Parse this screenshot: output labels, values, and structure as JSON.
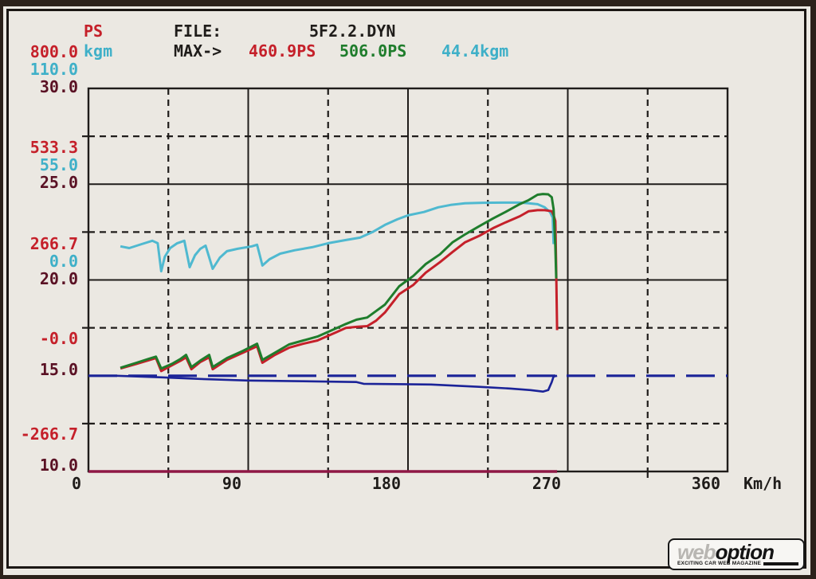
{
  "header": {
    "ps_label": "PS",
    "kgm_label": "kgm",
    "file_label": "FILE:",
    "file_value": "5F2.2.DYN",
    "max_label": "MAX->",
    "max_ps_red": "460.9PS",
    "max_ps_green": "506.0PS",
    "max_kgm": "44.4kgm"
  },
  "colors": {
    "paper": "#ebe8e2",
    "grid": "#1f1c1a",
    "ps_red": "#c5202a",
    "ps_green": "#1f7d2c",
    "kgm_cyan": "#4fb9d0",
    "aux_maroon": "#5a1124",
    "navy": "#1b2398",
    "baseline_maroon": "#8e1745"
  },
  "x_axis": {
    "labels": [
      "0",
      "90",
      "180",
      "270",
      "360"
    ],
    "unit": "Km/h"
  },
  "watermark": {
    "word1": "web",
    "word2": "option",
    "caption": "EXCITING CAR WEB MAGAZINE"
  },
  "chart_data": {
    "type": "line",
    "title": "",
    "xlabel": "Km/h",
    "x_range": [
      0,
      360
    ],
    "x_solid_gridlines": [
      90,
      180,
      270
    ],
    "x_dashed_gridlines": [
      45,
      135,
      225,
      315
    ],
    "grid": "solid major, dashed half-interval",
    "legend_position": "none",
    "axes": {
      "ps": {
        "range": [
          -266.7,
          800.0
        ],
        "color": "#c5202a"
      },
      "kgm": {
        "range": [
          -110.0,
          110.0
        ],
        "color": "#3fb0c8"
      },
      "aux": {
        "range": [
          10.0,
          30.0
        ],
        "color": "#5a1124"
      }
    },
    "aux_solid_gridlines": [
      25,
      20
    ],
    "aux_dashed_gridlines": [
      27.5,
      22.5,
      17.5,
      12.5
    ],
    "y_tick_rows": [
      {
        "aux_value": 30,
        "labels": [
          [
            "800.0",
            "ps"
          ],
          [
            "110.0",
            "kgm"
          ],
          [
            "30.0",
            "aux"
          ]
        ]
      },
      {
        "aux_value": 25,
        "labels": [
          [
            "533.3",
            "ps"
          ],
          [
            "55.0",
            "kgm"
          ],
          [
            "25.0",
            "aux"
          ]
        ]
      },
      {
        "aux_value": 20,
        "labels": [
          [
            "266.7",
            "ps"
          ],
          [
            "0.0",
            "kgm"
          ],
          [
            "20.0",
            "aux"
          ]
        ]
      },
      {
        "aux_value": 15,
        "labels": [
          [
            "-0.0",
            "ps"
          ],
          [
            "15.0",
            "aux"
          ]
        ]
      },
      {
        "aux_value": 10,
        "labels": [
          [
            "-266.7",
            "ps"
          ],
          [
            "10.0",
            "aux"
          ]
        ]
      }
    ],
    "series": [
      {
        "name": "torque-kgm-cyan",
        "unit": "kgm",
        "color": "#4fb9d0",
        "width": 3,
        "max_label": "44.4kgm",
        "points": [
          [
            18,
            19.3
          ],
          [
            23,
            18.3
          ],
          [
            30,
            20.6
          ],
          [
            36,
            22.5
          ],
          [
            39,
            21.1
          ],
          [
            41,
            5.0
          ],
          [
            43,
            13.3
          ],
          [
            46,
            18.3
          ],
          [
            50,
            21.1
          ],
          [
            54,
            22.5
          ],
          [
            57,
            7.3
          ],
          [
            60,
            14.2
          ],
          [
            63,
            17.9
          ],
          [
            66,
            19.7
          ],
          [
            70,
            6.4
          ],
          [
            74,
            12.8
          ],
          [
            78,
            16.5
          ],
          [
            84,
            17.9
          ],
          [
            92,
            19.3
          ],
          [
            95,
            20.2
          ],
          [
            98,
            8.3
          ],
          [
            102,
            11.9
          ],
          [
            108,
            15.1
          ],
          [
            116,
            17.0
          ],
          [
            126,
            18.8
          ],
          [
            135,
            21.1
          ],
          [
            145,
            22.9
          ],
          [
            153,
            24.3
          ],
          [
            160,
            27.5
          ],
          [
            167,
            31.6
          ],
          [
            174,
            34.8
          ],
          [
            180,
            37.1
          ],
          [
            189,
            39.0
          ],
          [
            197,
            41.7
          ],
          [
            204,
            43.1
          ],
          [
            212,
            44.0
          ],
          [
            222,
            44.3
          ],
          [
            234,
            44.4
          ],
          [
            243,
            44.4
          ],
          [
            248,
            44.0
          ],
          [
            253,
            43.5
          ],
          [
            257,
            41.7
          ],
          [
            260,
            39.0
          ],
          [
            261.5,
            35.8
          ],
          [
            262,
            20.6
          ]
        ]
      },
      {
        "name": "power-ps-red",
        "unit": "ps",
        "color": "#c5202a",
        "width": 3,
        "max_label": "460.9PS",
        "points": [
          [
            18,
            20
          ],
          [
            27,
            33
          ],
          [
            34,
            43
          ],
          [
            38,
            49
          ],
          [
            41,
            13
          ],
          [
            47,
            29
          ],
          [
            52,
            42
          ],
          [
            55,
            51
          ],
          [
            58,
            18
          ],
          [
            63,
            38
          ],
          [
            68,
            51
          ],
          [
            70,
            18
          ],
          [
            78,
            44
          ],
          [
            87,
            64
          ],
          [
            95,
            82
          ],
          [
            98,
            36
          ],
          [
            105,
            58
          ],
          [
            113,
            78
          ],
          [
            121,
            89
          ],
          [
            129,
            98
          ],
          [
            140,
            122
          ],
          [
            145,
            133
          ],
          [
            151,
            136
          ],
          [
            157,
            138
          ],
          [
            162,
            153
          ],
          [
            167,
            176
          ],
          [
            175,
            227
          ],
          [
            183,
            253
          ],
          [
            190,
            287
          ],
          [
            198,
            316
          ],
          [
            205,
            344
          ],
          [
            212,
            371
          ],
          [
            220,
            389
          ],
          [
            228,
            411
          ],
          [
            235,
            427
          ],
          [
            243,
            444
          ],
          [
            248,
            458
          ],
          [
            253,
            461
          ],
          [
            257,
            461
          ],
          [
            261,
            458
          ],
          [
            262,
            447
          ],
          [
            263,
            431
          ],
          [
            263.4,
            320
          ],
          [
            264,
            127
          ]
        ]
      },
      {
        "name": "power-ps-green",
        "unit": "ps",
        "color": "#1f7d2c",
        "width": 3,
        "max_label": "506.0PS",
        "points": [
          [
            18,
            22
          ],
          [
            27,
            36
          ],
          [
            34,
            47
          ],
          [
            38,
            53
          ],
          [
            41,
            20
          ],
          [
            47,
            33
          ],
          [
            52,
            47
          ],
          [
            55,
            58
          ],
          [
            58,
            24
          ],
          [
            63,
            42
          ],
          [
            68,
            58
          ],
          [
            70,
            24
          ],
          [
            78,
            49
          ],
          [
            87,
            69
          ],
          [
            95,
            89
          ],
          [
            98,
            44
          ],
          [
            105,
            64
          ],
          [
            113,
            87
          ],
          [
            121,
            98
          ],
          [
            129,
            109
          ],
          [
            140,
            133
          ],
          [
            145,
            144
          ],
          [
            151,
            156
          ],
          [
            157,
            162
          ],
          [
            162,
            180
          ],
          [
            167,
            198
          ],
          [
            175,
            249
          ],
          [
            183,
            278
          ],
          [
            190,
            311
          ],
          [
            198,
            338
          ],
          [
            205,
            371
          ],
          [
            212,
            393
          ],
          [
            220,
            416
          ],
          [
            228,
            438
          ],
          [
            235,
            456
          ],
          [
            243,
            478
          ],
          [
            248,
            489
          ],
          [
            253,
            504
          ],
          [
            256,
            506
          ],
          [
            259,
            505
          ],
          [
            261,
            497
          ],
          [
            262,
            464
          ],
          [
            263,
            360
          ],
          [
            263.5,
            271
          ]
        ]
      },
      {
        "name": "speed-trace-navy",
        "unit": "aux",
        "color": "#1b2398",
        "width": 2.6,
        "points": [
          [
            16,
            15.0
          ],
          [
            40,
            14.92
          ],
          [
            63,
            14.83
          ],
          [
            90,
            14.75
          ],
          [
            121,
            14.71
          ],
          [
            151,
            14.67
          ],
          [
            155,
            14.58
          ],
          [
            193,
            14.54
          ],
          [
            220,
            14.42
          ],
          [
            238,
            14.33
          ],
          [
            249,
            14.25
          ],
          [
            256,
            14.17
          ],
          [
            259,
            14.25
          ],
          [
            261,
            14.67
          ],
          [
            262,
            14.96
          ],
          [
            264,
            15.0
          ]
        ]
      },
      {
        "name": "reference-line-navy-dashed",
        "unit": "aux",
        "color": "#1b2398",
        "width": 3.2,
        "dash": "36 14",
        "points": [
          [
            0,
            15
          ],
          [
            360,
            15
          ]
        ]
      },
      {
        "name": "baseline-maroon",
        "unit": "aux",
        "color": "#8e1745",
        "width": 3.4,
        "points": [
          [
            0,
            10
          ],
          [
            264,
            10
          ]
        ]
      }
    ]
  }
}
